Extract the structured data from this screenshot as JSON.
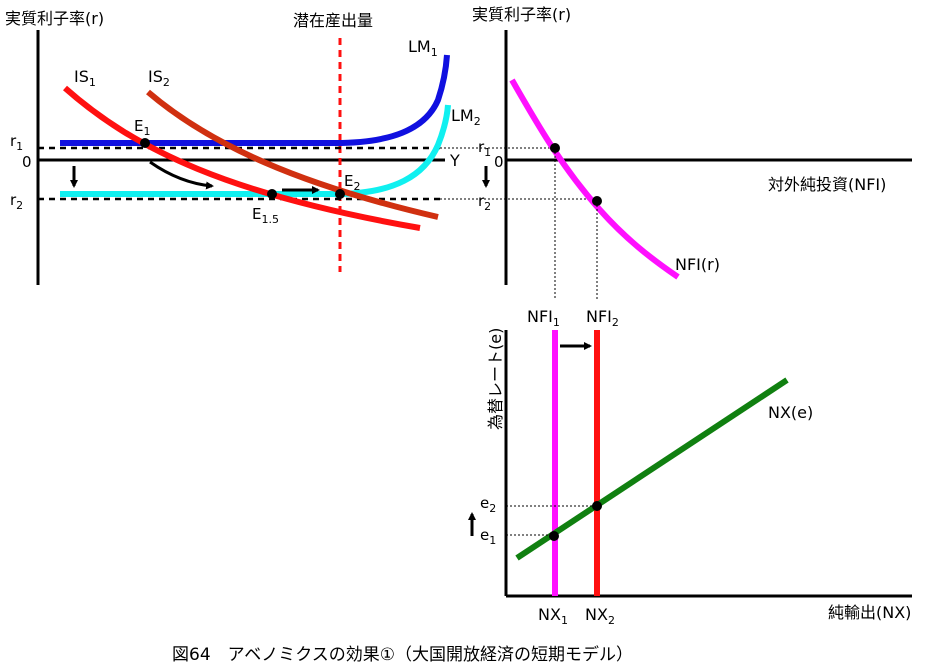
{
  "caption": "図64　アベノミクスの効果①（大国開放経済の短期モデル）",
  "left_panel": {
    "y_axis_label": "実質利子率(r)",
    "x_axis_label": "Y",
    "potential_output_label": "潜在産出量",
    "tick_r1": "r",
    "tick_r1_sub": "1",
    "tick_zero": "0",
    "tick_r2": "r",
    "tick_r2_sub": "2",
    "curves": {
      "lm1": "LM",
      "lm1_sub": "1",
      "lm2": "LM",
      "lm2_sub": "2",
      "is1": "IS",
      "is1_sub": "1",
      "is2": "IS",
      "is2_sub": "2"
    },
    "points": {
      "e1": "E",
      "e1_sub": "1",
      "e15": "E",
      "e15_sub": "1.5",
      "e2": "E",
      "e2_sub": "2"
    }
  },
  "right_top_panel": {
    "y_axis_label": "実質利子率(r)",
    "x_axis_label": "対外純投資(NFI)",
    "tick_r1": "r",
    "tick_r1_sub": "1",
    "tick_zero": "0",
    "tick_r2": "r",
    "tick_r2_sub": "2",
    "curve_label": "NFI(r)"
  },
  "right_bottom_panel": {
    "y_axis_label": "為替レート(e)",
    "x_axis_label": "純輸出(NX)",
    "nfi1": "NFI",
    "nfi1_sub": "1",
    "nfi2": "NFI",
    "nfi2_sub": "2",
    "nx1": "NX",
    "nx1_sub": "1",
    "nx2": "NX",
    "nx2_sub": "2",
    "tick_e1": "e",
    "tick_e1_sub": "1",
    "tick_e2": "e",
    "tick_e2_sub": "2",
    "curve_label": "NX(e)"
  },
  "colors": {
    "lm1": "#1010e0",
    "lm2": "#10f0f0",
    "is1": "#ff1010",
    "is2": "#d03010",
    "potential_output": "#ff1010",
    "nfi_curve": "#ff10ff",
    "nx_curve": "#108010",
    "nfi1_line": "#ff10ff",
    "nfi2_line": "#ff1010",
    "axis": "#000000"
  }
}
